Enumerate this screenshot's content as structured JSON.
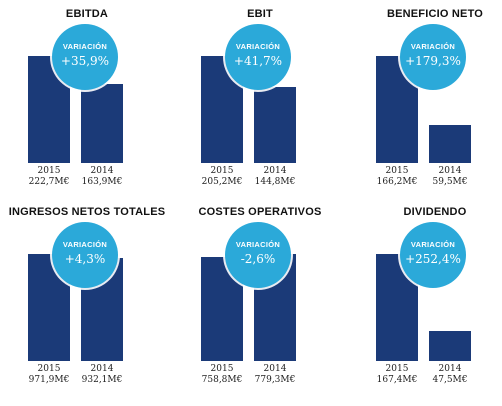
{
  "bubble_label": "VARIACIÓN",
  "colors": {
    "bar": "#1b3a78",
    "bubble": "#2ba9d9"
  },
  "chart_data": [
    {
      "type": "bar",
      "title": "EBITDA",
      "variation": "+35,9%",
      "categories": [
        "2015",
        "2014"
      ],
      "values": [
        222.7,
        163.9
      ],
      "value_labels": [
        "222,7M€",
        "163,9M€"
      ]
    },
    {
      "type": "bar",
      "title": "EBIT",
      "variation": "+41,7%",
      "categories": [
        "2015",
        "2014"
      ],
      "values": [
        205.2,
        144.8
      ],
      "value_labels": [
        "205,2M€",
        "144,8M€"
      ]
    },
    {
      "type": "bar",
      "title": "BENEFICIO NETO",
      "variation": "+179,3%",
      "categories": [
        "2015",
        "2014"
      ],
      "values": [
        166.2,
        59.5
      ],
      "value_labels": [
        "166,2M€",
        "59,5M€"
      ]
    },
    {
      "type": "bar",
      "title": "INGRESOS NETOS TOTALES",
      "variation": "+4,3%",
      "categories": [
        "2015",
        "2014"
      ],
      "values": [
        971.9,
        932.1
      ],
      "value_labels": [
        "971,9M€",
        "932,1M€"
      ]
    },
    {
      "type": "bar",
      "title": "COSTES OPERATIVOS",
      "variation": "-2,6%",
      "categories": [
        "2015",
        "2014"
      ],
      "values": [
        758.8,
        779.3
      ],
      "value_labels": [
        "758,8M€",
        "779,3M€"
      ]
    },
    {
      "type": "bar",
      "title": "DIVIDENDO",
      "variation": "+252,4%",
      "categories": [
        "2015",
        "2014"
      ],
      "values": [
        167.4,
        47.5
      ],
      "value_labels": [
        "167,4M€",
        "47,5M€"
      ]
    }
  ]
}
